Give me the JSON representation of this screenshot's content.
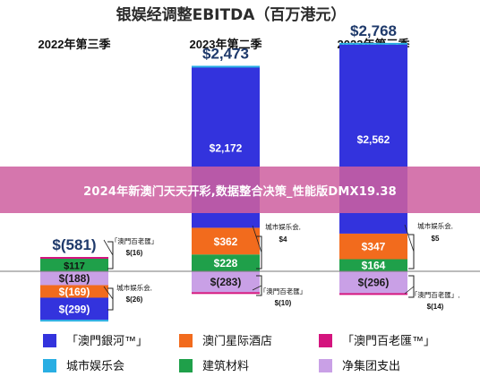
{
  "chart_data": {
    "type": "bar",
    "subtype": "stacked-waterfall",
    "title": "银娱经调整EBITDA（百万港元）",
    "categories": [
      "2022年第三季",
      "2023年第二季",
      "2023年第三季"
    ],
    "totals": [
      "$(581)",
      "$2,473",
      "$2,768"
    ],
    "total_values": [
      -581,
      2473,
      2768
    ],
    "series": [
      {
        "name": "「澳門銀河™」",
        "color": "#3333dd",
        "values": [
          -299,
          2172,
          2562
        ],
        "labels": [
          "$(299)",
          "$2,172",
          "$2,562"
        ]
      },
      {
        "name": "澳门星际酒店",
        "color": "#f26b1d",
        "values": [
          -169,
          362,
          347
        ],
        "labels": [
          "$(169)",
          "$362",
          "$347"
        ]
      },
      {
        "name": "「澳門百老匯™」",
        "color": "#d4147e",
        "values": [
          -16,
          -10,
          -14
        ],
        "labels": [
          "",
          "",
          ""
        ]
      },
      {
        "name": "城市娱乐会",
        "color": "#29aee3",
        "values": [
          -26,
          4,
          5
        ],
        "labels": [
          "",
          "",
          ""
        ]
      },
      {
        "name": "建筑材料",
        "color": "#1fa04a",
        "values": [
          117,
          228,
          164
        ],
        "labels": [
          "$117",
          "$228",
          "$164"
        ]
      },
      {
        "name": "净集团支出",
        "color": "#c9a0e6",
        "values": [
          -188,
          -283,
          -296
        ],
        "labels": [
          "$(188)",
          "$(283)",
          "$(296)"
        ]
      }
    ],
    "annotations": [
      {
        "category": 0,
        "side": "top",
        "text1": "「澳門百老匯」",
        "text2": "$(16)"
      },
      {
        "category": 0,
        "side": "bottom",
        "text1": "城市娱乐会,",
        "text2": "$(26)"
      },
      {
        "category": 1,
        "side": "top",
        "text1": "城市娱乐会,",
        "text2": "$4"
      },
      {
        "category": 1,
        "side": "bottom",
        "text1": "「澳門百老匯」",
        "text2": "$(10)"
      },
      {
        "category": 2,
        "side": "top",
        "text1": "城市娱乐会,",
        "text2": "$5"
      },
      {
        "category": 2,
        "side": "bottom",
        "text1": "「澳門百老匯」,",
        "text2": "$(14)"
      }
    ],
    "legend_position": "bottom",
    "grid": false
  },
  "banner": {
    "text": "2024年新澳门天天开彩,数据整合决策_性能版DMX19.38"
  }
}
